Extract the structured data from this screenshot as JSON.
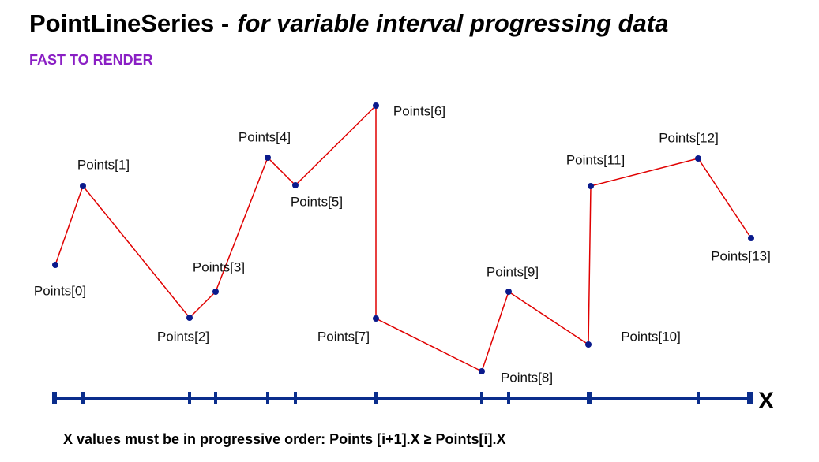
{
  "header": {
    "title": "PointLineSeries -",
    "title_italic": "for variable interval progressing data",
    "subtitle": "FAST TO RENDER"
  },
  "diagram": {
    "points": [
      "Points[0]",
      "Points[1]",
      "Points[2]",
      "Points[3]",
      "Points[4]",
      "Points[5]",
      "Points[6]",
      "Points[7]",
      "Points[8]",
      "Points[9]",
      "Points[10]",
      "Points[11]",
      "Points[12]",
      "Points[13]"
    ],
    "axis_label": "X"
  },
  "footer": "X values must be in progressive order: Points [i+1].X ≥ Points[i].X"
}
